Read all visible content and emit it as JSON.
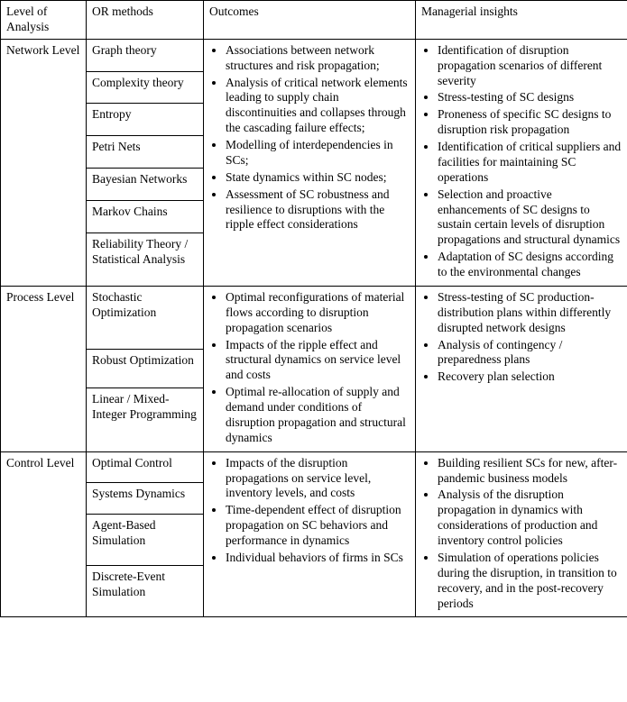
{
  "table": {
    "headers": {
      "col1": "Level of Analysis",
      "col2": "OR methods",
      "col3": "Outcomes",
      "col4": "Managerial insights"
    },
    "rows": {
      "network": {
        "level": "Network Level",
        "methods": [
          "Graph theory",
          "Complexity theory",
          "Entropy",
          "Petri Nets",
          "Bayesian Networks",
          "Markov Chains",
          "Reliability Theory / Statistical Analysis"
        ],
        "outcomes": [
          "Associations between network structures and risk propagation;",
          "Analysis of critical network elements leading to supply chain discontinuities and collapses through the cascading failure effects;",
          "Modelling of interdependencies in SCs;",
          "State dynamics within SC nodes;",
          "Assessment of SC robustness and resilience to disruptions with the ripple effect considerations"
        ],
        "insights": [
          "Identification of disruption propagation scenarios of different severity",
          "Stress-testing of SC designs",
          "Proneness of specific SC designs to disruption risk propagation",
          "Identification of critical suppliers and facilities for maintaining SC operations",
          "Selection and proactive enhancements of SC designs to sustain certain levels of disruption propagations and structural dynamics",
          "Adaptation of SC designs according to the environmental changes"
        ]
      },
      "process": {
        "level": "Process Level",
        "methods": [
          "Stochastic Optimization",
          "Robust Optimization",
          "Linear / Mixed-Integer Programming"
        ],
        "outcomes": [
          "Optimal reconfigurations of material flows according to disruption propagation scenarios",
          "Impacts of the ripple effect and structural dynamics on service level and costs",
          "Optimal re-allocation of supply and demand under conditions of disruption propagation and structural dynamics"
        ],
        "insights": [
          "Stress-testing of SC production-distribution plans within differently disrupted network designs",
          "Analysis of contingency / preparedness plans",
          "Recovery plan selection"
        ]
      },
      "control": {
        "level": "Control Level",
        "methods": [
          "Optimal Control",
          "Systems Dynamics",
          "Agent-Based Simulation",
          "Discrete-Event Simulation"
        ],
        "outcomes": [
          "Impacts of the disruption propagations on service level, inventory levels, and costs",
          "Time-dependent effect of disruption propagation on SC behaviors and performance in dynamics",
          "Individual behaviors of firms in SCs"
        ],
        "insights": [
          "Building resilient SCs for new, after-pandemic business models",
          "Analysis of the disruption propagation in dynamics with considerations of production and inventory control policies",
          "Simulation of operations policies during the disruption, in transition to recovery, and in the post-recovery periods"
        ]
      }
    }
  }
}
